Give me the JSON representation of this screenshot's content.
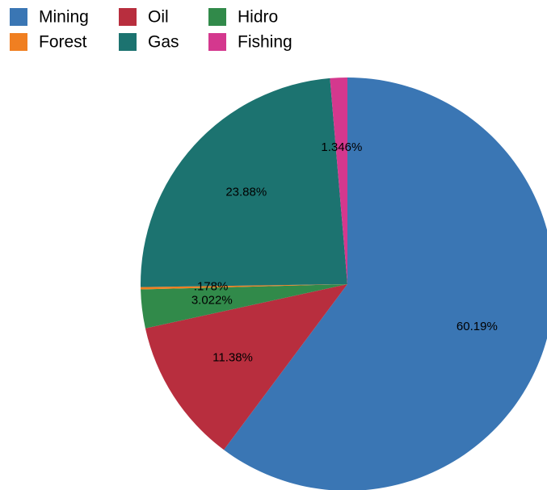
{
  "chart_data": {
    "type": "pie",
    "categories": [
      "Mining",
      "Oil",
      "Hidro",
      "Forest",
      "Gas",
      "Fishing"
    ],
    "values": [
      60.19,
      11.38,
      3.022,
      0.178,
      23.88,
      1.346
    ],
    "value_labels": [
      "60.19%",
      "11.38%",
      "3.022%",
      ".178%",
      "23.88%",
      "1.346%"
    ],
    "colors": [
      "#3a76b4",
      "#b82e3e",
      "#318a4a",
      "#f07f21",
      "#1c7370",
      "#d4388e"
    ],
    "legend": "top-left"
  }
}
